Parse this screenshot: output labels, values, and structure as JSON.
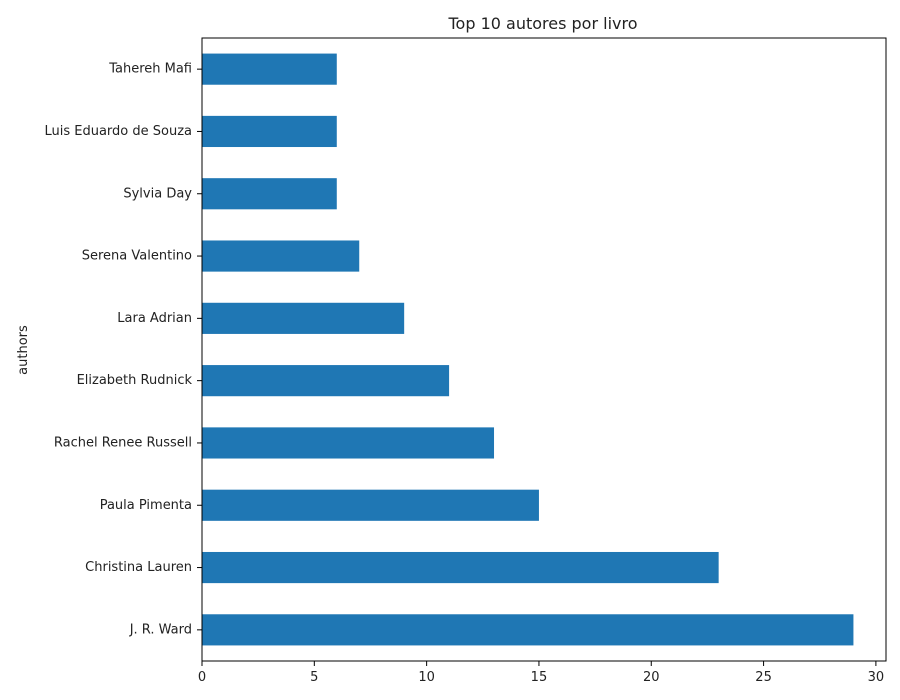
{
  "chart_data": {
    "type": "bar",
    "orientation": "horizontal",
    "title": "Top 10 autores por livro",
    "xlabel": "",
    "ylabel": "authors",
    "categories": [
      "J. R. Ward",
      "Christina Lauren",
      "Paula Pimenta",
      "Rachel Renee Russell",
      "Elizabeth Rudnick",
      "Lara Adrian",
      "Serena Valentino",
      "Sylvia Day",
      "Luis Eduardo de Souza",
      "Tahereh Mafi"
    ],
    "values": [
      29,
      23,
      15,
      13,
      11,
      9,
      7,
      6,
      6,
      6
    ],
    "xlim": [
      0,
      30.45
    ],
    "xticks": [
      0,
      5,
      10,
      15,
      20,
      25,
      30
    ],
    "grid": false,
    "bar_color": "#1f77b4"
  }
}
